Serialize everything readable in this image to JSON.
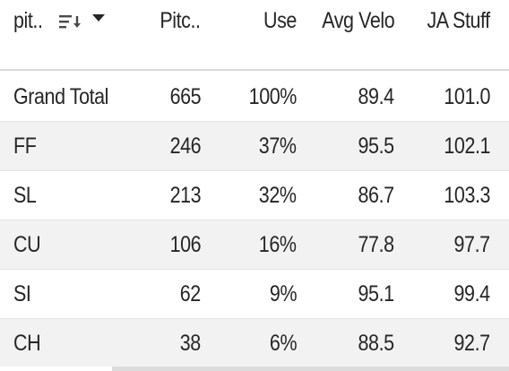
{
  "header": {
    "pitch_type": "pit..",
    "pitches": "Pitc..",
    "use": "Use",
    "avg_velo": "Avg Velo",
    "ja_stuff": "JA Stuff",
    "sort_icon": "sort-descending-icon",
    "dropdown_icon": "caret-down-icon"
  },
  "rows": [
    {
      "name": "Grand Total",
      "pitches": "665",
      "use": "100%",
      "avg_velo": "89.4",
      "ja_stuff": "101.0"
    },
    {
      "name": "FF",
      "pitches": "246",
      "use": "37%",
      "avg_velo": "95.5",
      "ja_stuff": "102.1"
    },
    {
      "name": "SL",
      "pitches": "213",
      "use": "32%",
      "avg_velo": "86.7",
      "ja_stuff": "103.3"
    },
    {
      "name": "CU",
      "pitches": "106",
      "use": "16%",
      "avg_velo": "77.8",
      "ja_stuff": "97.7"
    },
    {
      "name": "SI",
      "pitches": "62",
      "use": "9%",
      "avg_velo": "95.1",
      "ja_stuff": "99.4"
    },
    {
      "name": "CH",
      "pitches": "38",
      "use": "6%",
      "avg_velo": "88.5",
      "ja_stuff": "92.7"
    }
  ],
  "colors": {
    "text": "#262626",
    "alt_row": "#f2f2f2",
    "border": "#d9d9d9"
  }
}
